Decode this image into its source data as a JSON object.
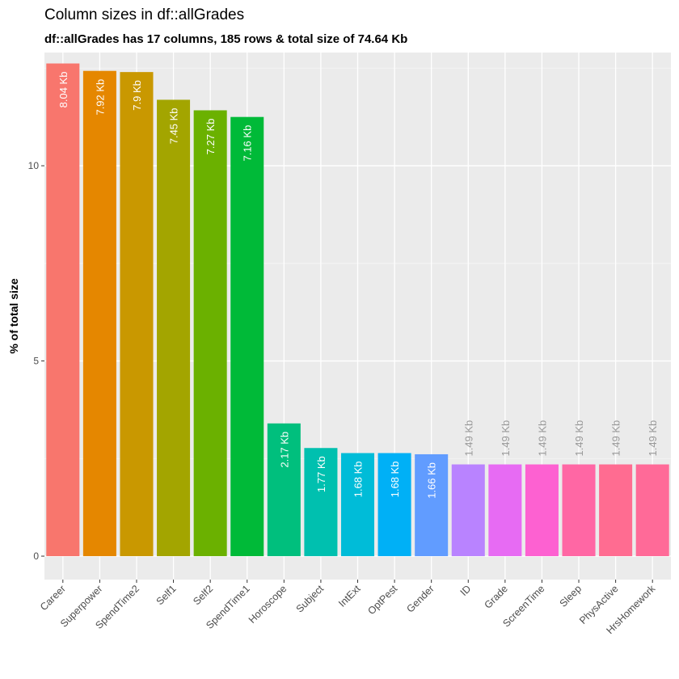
{
  "chart_data": {
    "type": "bar",
    "title": "Column sizes in df::allGrades",
    "subtitle": "df::allGrades has 17 columns, 185 rows & total size of 74.64 Kb",
    "xlabel": "",
    "ylabel": "% of total size",
    "ylim": [
      -0.6,
      12.9
    ],
    "yticks": [
      0,
      5,
      10
    ],
    "grid": true,
    "legend": "none",
    "categories": [
      "Career",
      "Superpower",
      "SpendTime2",
      "Self1",
      "Self2",
      "SpendTime1",
      "Horoscope",
      "Subject",
      "IntExt",
      "OptPest",
      "Gender",
      "ID",
      "Grade",
      "ScreenTime",
      "Sleep",
      "PhysActive",
      "HrsHomework"
    ],
    "values": [
      12.62,
      12.43,
      12.4,
      11.69,
      11.42,
      11.25,
      3.4,
      2.77,
      2.64,
      2.64,
      2.61,
      2.35,
      2.35,
      2.35,
      2.35,
      2.35,
      2.35
    ],
    "labels": [
      "8.04 Kb",
      "7.92 Kb",
      "7.9 Kb",
      "7.45 Kb",
      "7.27 Kb",
      "7.16 Kb",
      "2.17 Kb",
      "1.77 Kb",
      "1.68 Kb",
      "1.68 Kb",
      "1.66 Kb",
      "1.49 Kb",
      "1.49 Kb",
      "1.49 Kb",
      "1.49 Kb",
      "1.49 Kb",
      "1.49 Kb"
    ],
    "colors": [
      "#F8766D",
      "#E58700",
      "#C99800",
      "#A3A500",
      "#6BB100",
      "#00BA38",
      "#00BF7D",
      "#00C0AF",
      "#00BCD8",
      "#00B0F6",
      "#619CFF",
      "#B983FF",
      "#E76BF3",
      "#FD61D1",
      "#FF67A4",
      "#FF6C91",
      "#FF6A98"
    ],
    "label_color_inside": "#ffffff",
    "label_color_outside": "#999999"
  }
}
